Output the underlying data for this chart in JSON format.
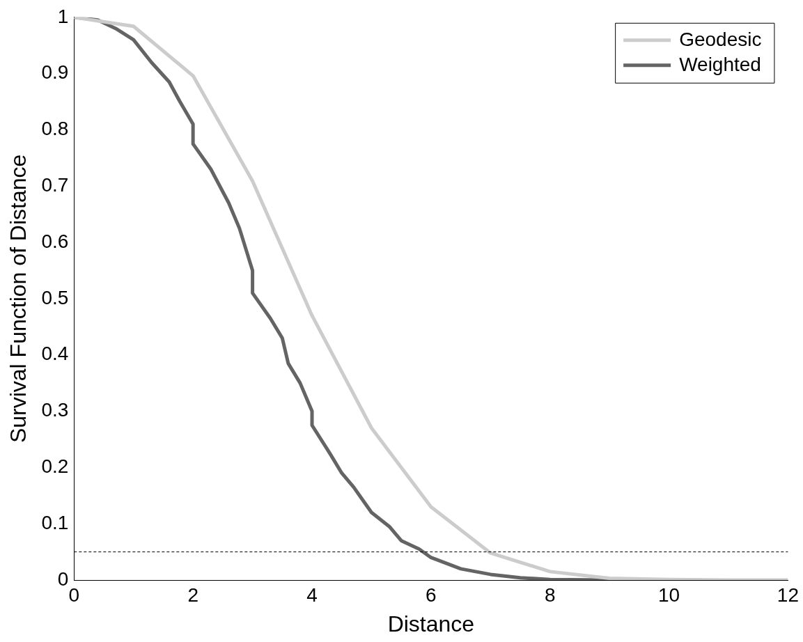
{
  "chart_data": {
    "type": "line",
    "xlabel": "Distance",
    "ylabel": "Survival Function of Distance",
    "xlim": [
      0,
      12
    ],
    "xticks": [
      0,
      2,
      4,
      6,
      8,
      10,
      12
    ],
    "ylim": [
      0,
      1
    ],
    "yticks": [
      0,
      0.1,
      0.2,
      0.3,
      0.4,
      0.5,
      0.6,
      0.7,
      0.8,
      0.9,
      1
    ],
    "grid": false,
    "legend": "top right",
    "marker": "none",
    "line_style": "solid",
    "series": [
      {
        "name": "Geodesic",
        "color": "#cccccc",
        "x": [
          0,
          1,
          2,
          3,
          4,
          5,
          6,
          7,
          8,
          9,
          10,
          11,
          12
        ],
        "values": [
          1,
          0.984,
          0.896,
          0.709,
          0.47,
          0.27,
          0.13,
          0.048,
          0.015,
          0.003,
          0.001,
          0,
          0
        ]
      },
      {
        "name": "Weighted",
        "color": "#646464",
        "x": [
          0,
          0.4,
          0.7,
          1,
          1.3,
          1.6,
          1.78,
          2,
          2,
          2.3,
          2.6,
          2.78,
          3,
          3,
          3.3,
          3.5,
          3.6,
          3.8,
          4,
          4,
          4.3,
          4.5,
          4.7,
          5,
          5.3,
          5.5,
          5.8,
          6,
          6.3,
          6.5,
          7,
          7.5,
          8,
          9,
          10
        ],
        "values": [
          1,
          0.995,
          0.98,
          0.96,
          0.92,
          0.885,
          0.85,
          0.81,
          0.775,
          0.73,
          0.67,
          0.625,
          0.55,
          0.51,
          0.465,
          0.43,
          0.385,
          0.35,
          0.3,
          0.275,
          0.225,
          0.19,
          0.165,
          0.12,
          0.095,
          0.07,
          0.055,
          0.04,
          0.028,
          0.02,
          0.01,
          0.004,
          0.001,
          0,
          0
        ]
      }
    ],
    "ref_lines": [
      {
        "axis": "y",
        "value": 0.05,
        "color": "#000000",
        "line_style": "dashed"
      }
    ]
  }
}
